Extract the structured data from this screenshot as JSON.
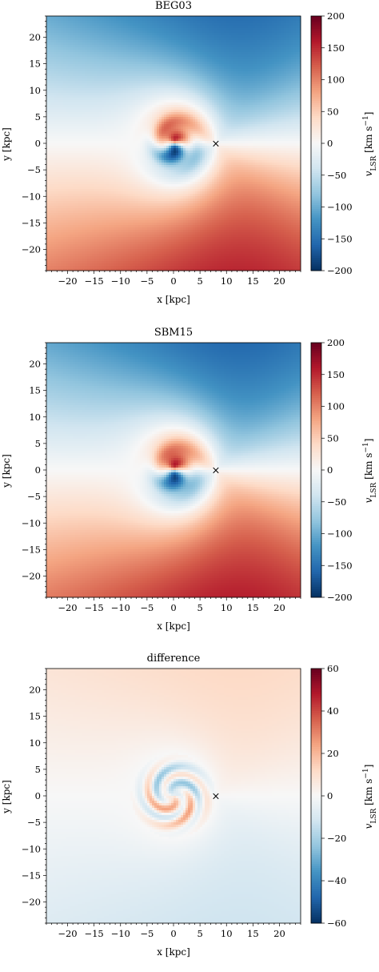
{
  "chart_data": [
    {
      "type": "heatmap",
      "title": "BEG03",
      "xlabel": "x [kpc]",
      "ylabel": "y [kpc]",
      "xlim": [
        -24,
        24
      ],
      "ylim": [
        -24,
        24
      ],
      "xticks": [
        -20,
        -15,
        -10,
        -5,
        0,
        5,
        10,
        15,
        20
      ],
      "yticks": [
        -20,
        -15,
        -10,
        -5,
        0,
        5,
        10,
        15,
        20
      ],
      "xtick_labels": [
        "−20",
        "−15",
        "−10",
        "−5",
        "0",
        "5",
        "10",
        "15",
        "20"
      ],
      "ytick_labels": [
        "−20",
        "−15",
        "−10",
        "−5",
        "0",
        "5",
        "10",
        "15",
        "20"
      ],
      "colorbar": {
        "label": "v_LSR [km s^-1]",
        "colormap": "RdBu_r",
        "vmin": -200,
        "vmax": 200,
        "ticks": [
          -200,
          -150,
          -100,
          -50,
          0,
          50,
          100,
          150,
          200
        ],
        "tick_labels": [
          "−200",
          "−150",
          "−100",
          "−50",
          "0",
          "50",
          "100",
          "150",
          "200"
        ]
      },
      "marker": {
        "x": 8,
        "y": 0,
        "symbol": "×"
      },
      "field_summary": {
        "max_abs_velocity": 180,
        "inner_radius_kpc": 8
      }
    },
    {
      "type": "heatmap",
      "title": "SBM15",
      "xlabel": "x [kpc]",
      "ylabel": "y [kpc]",
      "xlim": [
        -24,
        24
      ],
      "ylim": [
        -24,
        24
      ],
      "xticks": [
        -20,
        -15,
        -10,
        -5,
        0,
        5,
        10,
        15,
        20
      ],
      "yticks": [
        -20,
        -15,
        -10,
        -5,
        0,
        5,
        10,
        15,
        20
      ],
      "xtick_labels": [
        "−20",
        "−15",
        "−10",
        "−5",
        "0",
        "5",
        "10",
        "15",
        "20"
      ],
      "ytick_labels": [
        "−20",
        "−15",
        "−10",
        "−5",
        "0",
        "5",
        "10",
        "15",
        "20"
      ],
      "colorbar": {
        "label": "v_LSR [km s^-1]",
        "colormap": "RdBu_r",
        "vmin": -200,
        "vmax": 200,
        "ticks": [
          -200,
          -150,
          -100,
          -50,
          0,
          50,
          100,
          150,
          200
        ],
        "tick_labels": [
          "−200",
          "−150",
          "−100",
          "−50",
          "0",
          "50",
          "100",
          "150",
          "200"
        ]
      },
      "marker": {
        "x": 8,
        "y": 0,
        "symbol": "×"
      },
      "field_summary": {
        "max_abs_velocity": 185,
        "inner_radius_kpc": 8
      }
    },
    {
      "type": "heatmap",
      "title": "difference",
      "xlabel": "x [kpc]",
      "ylabel": "y [kpc]",
      "xlim": [
        -24,
        24
      ],
      "ylim": [
        -24,
        24
      ],
      "xticks": [
        -20,
        -15,
        -10,
        -5,
        0,
        5,
        10,
        15,
        20
      ],
      "yticks": [
        -20,
        -15,
        -10,
        -5,
        0,
        5,
        10,
        15,
        20
      ],
      "xtick_labels": [
        "−20",
        "−15",
        "−10",
        "−5",
        "0",
        "5",
        "10",
        "15",
        "20"
      ],
      "ytick_labels": [
        "−20",
        "−15",
        "−10",
        "−5",
        "0",
        "5",
        "10",
        "15",
        "20"
      ],
      "colorbar": {
        "label": "v_LSR [km s^-1]",
        "colormap": "RdBu_r",
        "vmin": -60,
        "vmax": 60,
        "ticks": [
          -60,
          -40,
          -20,
          0,
          20,
          40,
          60
        ],
        "tick_labels": [
          "−60",
          "−40",
          "−20",
          "0",
          "20",
          "40",
          "60"
        ]
      },
      "marker": {
        "x": 8,
        "y": 0,
        "symbol": "×"
      },
      "field_summary": {
        "max_abs_velocity": 20,
        "inner_radius_kpc": 8
      }
    }
  ]
}
